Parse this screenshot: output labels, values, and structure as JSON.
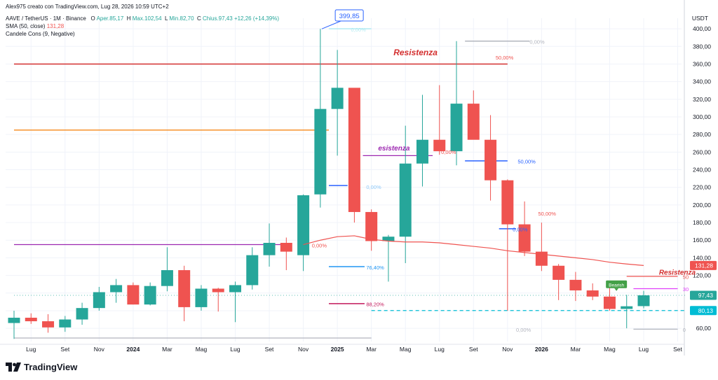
{
  "header": {
    "creator": "Alex975 creato con TradingView.com, Lug 28, 2026 10:59 UTC+2",
    "symbol": "AAVE / TetherUS · 1M · Binance",
    "o_label": "O",
    "o_value": "Aper.85,17",
    "h_label": "H",
    "h_value": "Max.102,54",
    "l_label": "L",
    "l_value": "Min.82,70",
    "c_label": "C",
    "c_value": "Chius.97,43",
    "change": "+12,26 (+14,39%)",
    "sma_label": "SMA (50, close)",
    "sma_value": "131,28",
    "pattern_label": "Candele Cons (9, Negative)"
  },
  "brand": {
    "name": "TradingView",
    "logo_icon": "tradingview-logo-icon"
  },
  "colors": {
    "up": "#26a69a",
    "down": "#ef5350",
    "sma": "#ef5350",
    "resistance": "#d32f2f",
    "orange": "#f57c00",
    "purple": "#9c27b0",
    "blue": "#2962ff",
    "pink": "#c2185b",
    "cyan": "#00bcd4"
  },
  "chart_data": {
    "type": "candlestick",
    "currency": "USDT",
    "ylim": [
      45,
      412
    ],
    "y_ticks": [
      "60,00",
      "80,00",
      "100,00",
      "120,00",
      "140,00",
      "160,00",
      "180,00",
      "200,00",
      "220,00",
      "240,00",
      "260,00",
      "280,00",
      "300,00",
      "320,00",
      "340,00",
      "360,00",
      "380,00",
      "400,00"
    ],
    "y_tick_values": [
      60,
      80,
      100,
      120,
      140,
      160,
      180,
      200,
      220,
      240,
      260,
      280,
      300,
      320,
      340,
      360,
      380,
      400
    ],
    "x_labels": [
      {
        "text": "Lug",
        "i": 1
      },
      {
        "text": "Set",
        "i": 3
      },
      {
        "text": "Nov",
        "i": 5
      },
      {
        "text": "2024",
        "i": 7,
        "bold": true
      },
      {
        "text": "Mar",
        "i": 9
      },
      {
        "text": "Mag",
        "i": 11
      },
      {
        "text": "Lug",
        "i": 13
      },
      {
        "text": "Set",
        "i": 15
      },
      {
        "text": "Nov",
        "i": 17
      },
      {
        "text": "2025",
        "i": 19,
        "bold": true
      },
      {
        "text": "Mar",
        "i": 21
      },
      {
        "text": "Mag",
        "i": 23
      },
      {
        "text": "Lug",
        "i": 25
      },
      {
        "text": "Set",
        "i": 27
      },
      {
        "text": "Nov",
        "i": 29
      },
      {
        "text": "2026",
        "i": 31,
        "bold": true
      },
      {
        "text": "Mar",
        "i": 33
      },
      {
        "text": "Mag",
        "i": 35
      },
      {
        "text": "Lug",
        "i": 37
      },
      {
        "text": "Set",
        "i": 39
      }
    ],
    "candles": [
      {
        "o": 66,
        "h": 80,
        "l": 48,
        "c": 72
      },
      {
        "o": 72,
        "h": 77,
        "l": 65,
        "c": 68
      },
      {
        "o": 68,
        "h": 76,
        "l": 55,
        "c": 61
      },
      {
        "o": 61,
        "h": 74,
        "l": 56,
        "c": 70
      },
      {
        "o": 70,
        "h": 89,
        "l": 64,
        "c": 83
      },
      {
        "o": 83,
        "h": 107,
        "l": 80,
        "c": 101
      },
      {
        "o": 101,
        "h": 116,
        "l": 89,
        "c": 109
      },
      {
        "o": 109,
        "h": 112,
        "l": 87,
        "c": 87
      },
      {
        "o": 87,
        "h": 112,
        "l": 86,
        "c": 108
      },
      {
        "o": 108,
        "h": 152,
        "l": 102,
        "c": 126
      },
      {
        "o": 126,
        "h": 131,
        "l": 68,
        "c": 84
      },
      {
        "o": 84,
        "h": 109,
        "l": 80,
        "c": 105
      },
      {
        "o": 105,
        "h": 106,
        "l": 79,
        "c": 101
      },
      {
        "o": 101,
        "h": 113,
        "l": 67,
        "c": 109
      },
      {
        "o": 109,
        "h": 152,
        "l": 104,
        "c": 143
      },
      {
        "o": 143,
        "h": 179,
        "l": 130,
        "c": 157
      },
      {
        "o": 157,
        "h": 163,
        "l": 126,
        "c": 147
      },
      {
        "o": 143,
        "h": 212,
        "l": 125,
        "c": 211
      },
      {
        "o": 212,
        "h": 399.85,
        "l": 197,
        "c": 309
      },
      {
        "o": 309,
        "h": 376,
        "l": 256,
        "c": 333
      },
      {
        "o": 333,
        "h": 333,
        "l": 180,
        "c": 192
      },
      {
        "o": 192,
        "h": 195,
        "l": 148,
        "c": 159
      },
      {
        "o": 159,
        "h": 166,
        "l": 113,
        "c": 164
      },
      {
        "o": 164,
        "h": 290,
        "l": 134,
        "c": 247
      },
      {
        "o": 247,
        "h": 325,
        "l": 221,
        "c": 274
      },
      {
        "o": 274,
        "h": 336,
        "l": 257,
        "c": 261
      },
      {
        "o": 261,
        "h": 386,
        "l": 245,
        "c": 315
      },
      {
        "o": 315,
        "h": 330,
        "l": 275,
        "c": 274
      },
      {
        "o": 274,
        "h": 302,
        "l": 205,
        "c": 228
      },
      {
        "o": 228,
        "h": 229,
        "l": 80,
        "c": 178
      },
      {
        "o": 178,
        "h": 204,
        "l": 142,
        "c": 147
      },
      {
        "o": 147,
        "h": 180,
        "l": 125,
        "c": 131
      },
      {
        "o": 131,
        "h": 133,
        "l": 92,
        "c": 115
      },
      {
        "o": 115,
        "h": 124,
        "l": 91,
        "c": 103
      },
      {
        "o": 103,
        "h": 111,
        "l": 92,
        "c": 96
      },
      {
        "o": 96,
        "h": 107,
        "l": 80,
        "c": 82
      },
      {
        "o": 82,
        "h": 98,
        "l": 60,
        "c": 85
      },
      {
        "o": 85.17,
        "h": 102.54,
        "l": 82.7,
        "c": 97.43
      }
    ],
    "sma": {
      "name": "SMA (50, close)",
      "points": [
        [
          17,
          155
        ],
        [
          18,
          160
        ],
        [
          19,
          164
        ],
        [
          20,
          165
        ],
        [
          21,
          161
        ],
        [
          22,
          159
        ],
        [
          23,
          158
        ],
        [
          24,
          158
        ],
        [
          25,
          157
        ],
        [
          26,
          155
        ],
        [
          27,
          153
        ],
        [
          28,
          151
        ],
        [
          29,
          148
        ],
        [
          30,
          146
        ],
        [
          31,
          144
        ],
        [
          32,
          142
        ],
        [
          33,
          140
        ],
        [
          34,
          138
        ],
        [
          35,
          135
        ],
        [
          36,
          133
        ],
        [
          37,
          131.28
        ]
      ]
    },
    "lines": [
      {
        "name": "resistance-top",
        "y": 360,
        "x0": 0,
        "x1": 29,
        "color": "#d32f2f"
      },
      {
        "name": "orange-level",
        "y": 285,
        "x0": 0,
        "x1": 18.5,
        "color": "#f57c00"
      },
      {
        "name": "purple-level",
        "y": 155,
        "x0": 0,
        "x1": 16,
        "color": "#9c27b0"
      },
      {
        "name": "gray-bottom",
        "y": 49,
        "x0": 0,
        "x1": 21,
        "color": "#b2b5be"
      },
      {
        "name": "fib-top",
        "y": 400,
        "x0": 18.5,
        "x1": 21,
        "color": "#b2ebf2"
      },
      {
        "name": "fib-2",
        "y": 222,
        "x0": 18.5,
        "x1": 19.6,
        "color": "#2962ff"
      },
      {
        "name": "fib-3",
        "y": 130,
        "x0": 18.5,
        "x1": 20.6,
        "color": "#2196f3"
      },
      {
        "name": "fib-4",
        "y": 88,
        "x0": 18.5,
        "x1": 20.6,
        "color": "#c2185b"
      },
      {
        "name": "purple-res",
        "y": 256,
        "x0": 20.5,
        "x1": 24.6,
        "color": "#9c27b0"
      },
      {
        "name": "fib-r-top",
        "y": 386,
        "x0": 26.5,
        "x1": 30.3,
        "color": "#b2b5be"
      },
      {
        "name": "fib-r-50",
        "y": 250,
        "x0": 26.5,
        "x1": 29,
        "color": "#2962ff"
      },
      {
        "name": "fib-r-blue",
        "y": 173,
        "x0": 28.5,
        "x1": 29.5,
        "color": "#2962ff"
      },
      {
        "name": "red-right",
        "y": 119,
        "x0": 36,
        "x1": 39,
        "color": "#ef5350"
      },
      {
        "name": "magenta-right",
        "y": 105,
        "x0": 36.4,
        "x1": 39,
        "color": "#e040fb"
      },
      {
        "name": "gray-right",
        "y": 59,
        "x0": 36.4,
        "x1": 39,
        "color": "#b2b5be"
      }
    ],
    "dashed_lines": [
      {
        "name": "current-price",
        "y": 97.43,
        "x0": 0,
        "x1": 39.5,
        "color": "#26a69a"
      },
      {
        "name": "support-80",
        "y": 80.13,
        "x0": 21,
        "x1": 39.5,
        "color": "#00bcd4"
      }
    ],
    "annotations": [
      {
        "text": "Resistenza",
        "x": 22.3,
        "y": 370,
        "color": "#d32f2f",
        "size": 12
      },
      {
        "text": "esistenza",
        "x": 21.4,
        "y": 262,
        "color": "#9c27b0",
        "size": 10
      },
      {
        "text": "Resistenza",
        "x": 37.9,
        "y": 121,
        "color": "#d32f2f",
        "size": 10
      }
    ],
    "fib_labels": [
      {
        "text": "0,00%",
        "x": 19.8,
        "y": 397,
        "color": "#b2ebf2"
      },
      {
        "text": "50,00%",
        "x": 28.3,
        "y": 365,
        "color": "#ef5350"
      },
      {
        "text": "0,00%",
        "x": 30.3,
        "y": 383,
        "color": "#b2b5be"
      },
      {
        "text": "0,00%",
        "x": 20.7,
        "y": 218,
        "color": "#90caf9"
      },
      {
        "text": "50,00%",
        "x": 29.6,
        "y": 247,
        "color": "#2962ff"
      },
      {
        "text": "50,00%",
        "x": 30.8,
        "y": 188,
        "color": "#ef5350"
      },
      {
        "text": "0,00%",
        "x": 29.3,
        "y": 170,
        "color": "#2962ff"
      },
      {
        "text": "0,00%",
        "x": 17.5,
        "y": 152,
        "color": "#ef5350"
      },
      {
        "text": "76,40%",
        "x": 20.7,
        "y": 127,
        "color": "#2196f3"
      },
      {
        "text": "88,20%",
        "x": 20.7,
        "y": 85,
        "color": "#c2185b"
      },
      {
        "text": "0,00%",
        "x": 25.1,
        "y": 258,
        "color": "#ef5350"
      },
      {
        "text": "0,00%",
        "x": 29.5,
        "y": 56,
        "color": "#b2b5be"
      },
      {
        "text": "50",
        "x": 39.3,
        "y": 116,
        "color": "#ef5350"
      },
      {
        "text": "30",
        "x": 39.3,
        "y": 102,
        "color": "#e040fb"
      },
      {
        "text": "0",
        "x": 39.3,
        "y": 56,
        "color": "#b2b5be"
      }
    ],
    "callouts": [
      {
        "text": "399,85",
        "x": 19.7,
        "y": 412,
        "color": "#2962ff"
      }
    ],
    "pattern_flag": {
      "text": "Bearish",
      "x": 35.4,
      "y": 108,
      "color": "#43a047"
    },
    "price_tags": [
      {
        "text": "131,28",
        "y": 131.28,
        "color": "#ef5350"
      },
      {
        "text": "97,43",
        "y": 97.43,
        "color": "#26a69a"
      },
      {
        "text": "80,13",
        "y": 80.13,
        "color": "#00bcd4"
      }
    ]
  }
}
